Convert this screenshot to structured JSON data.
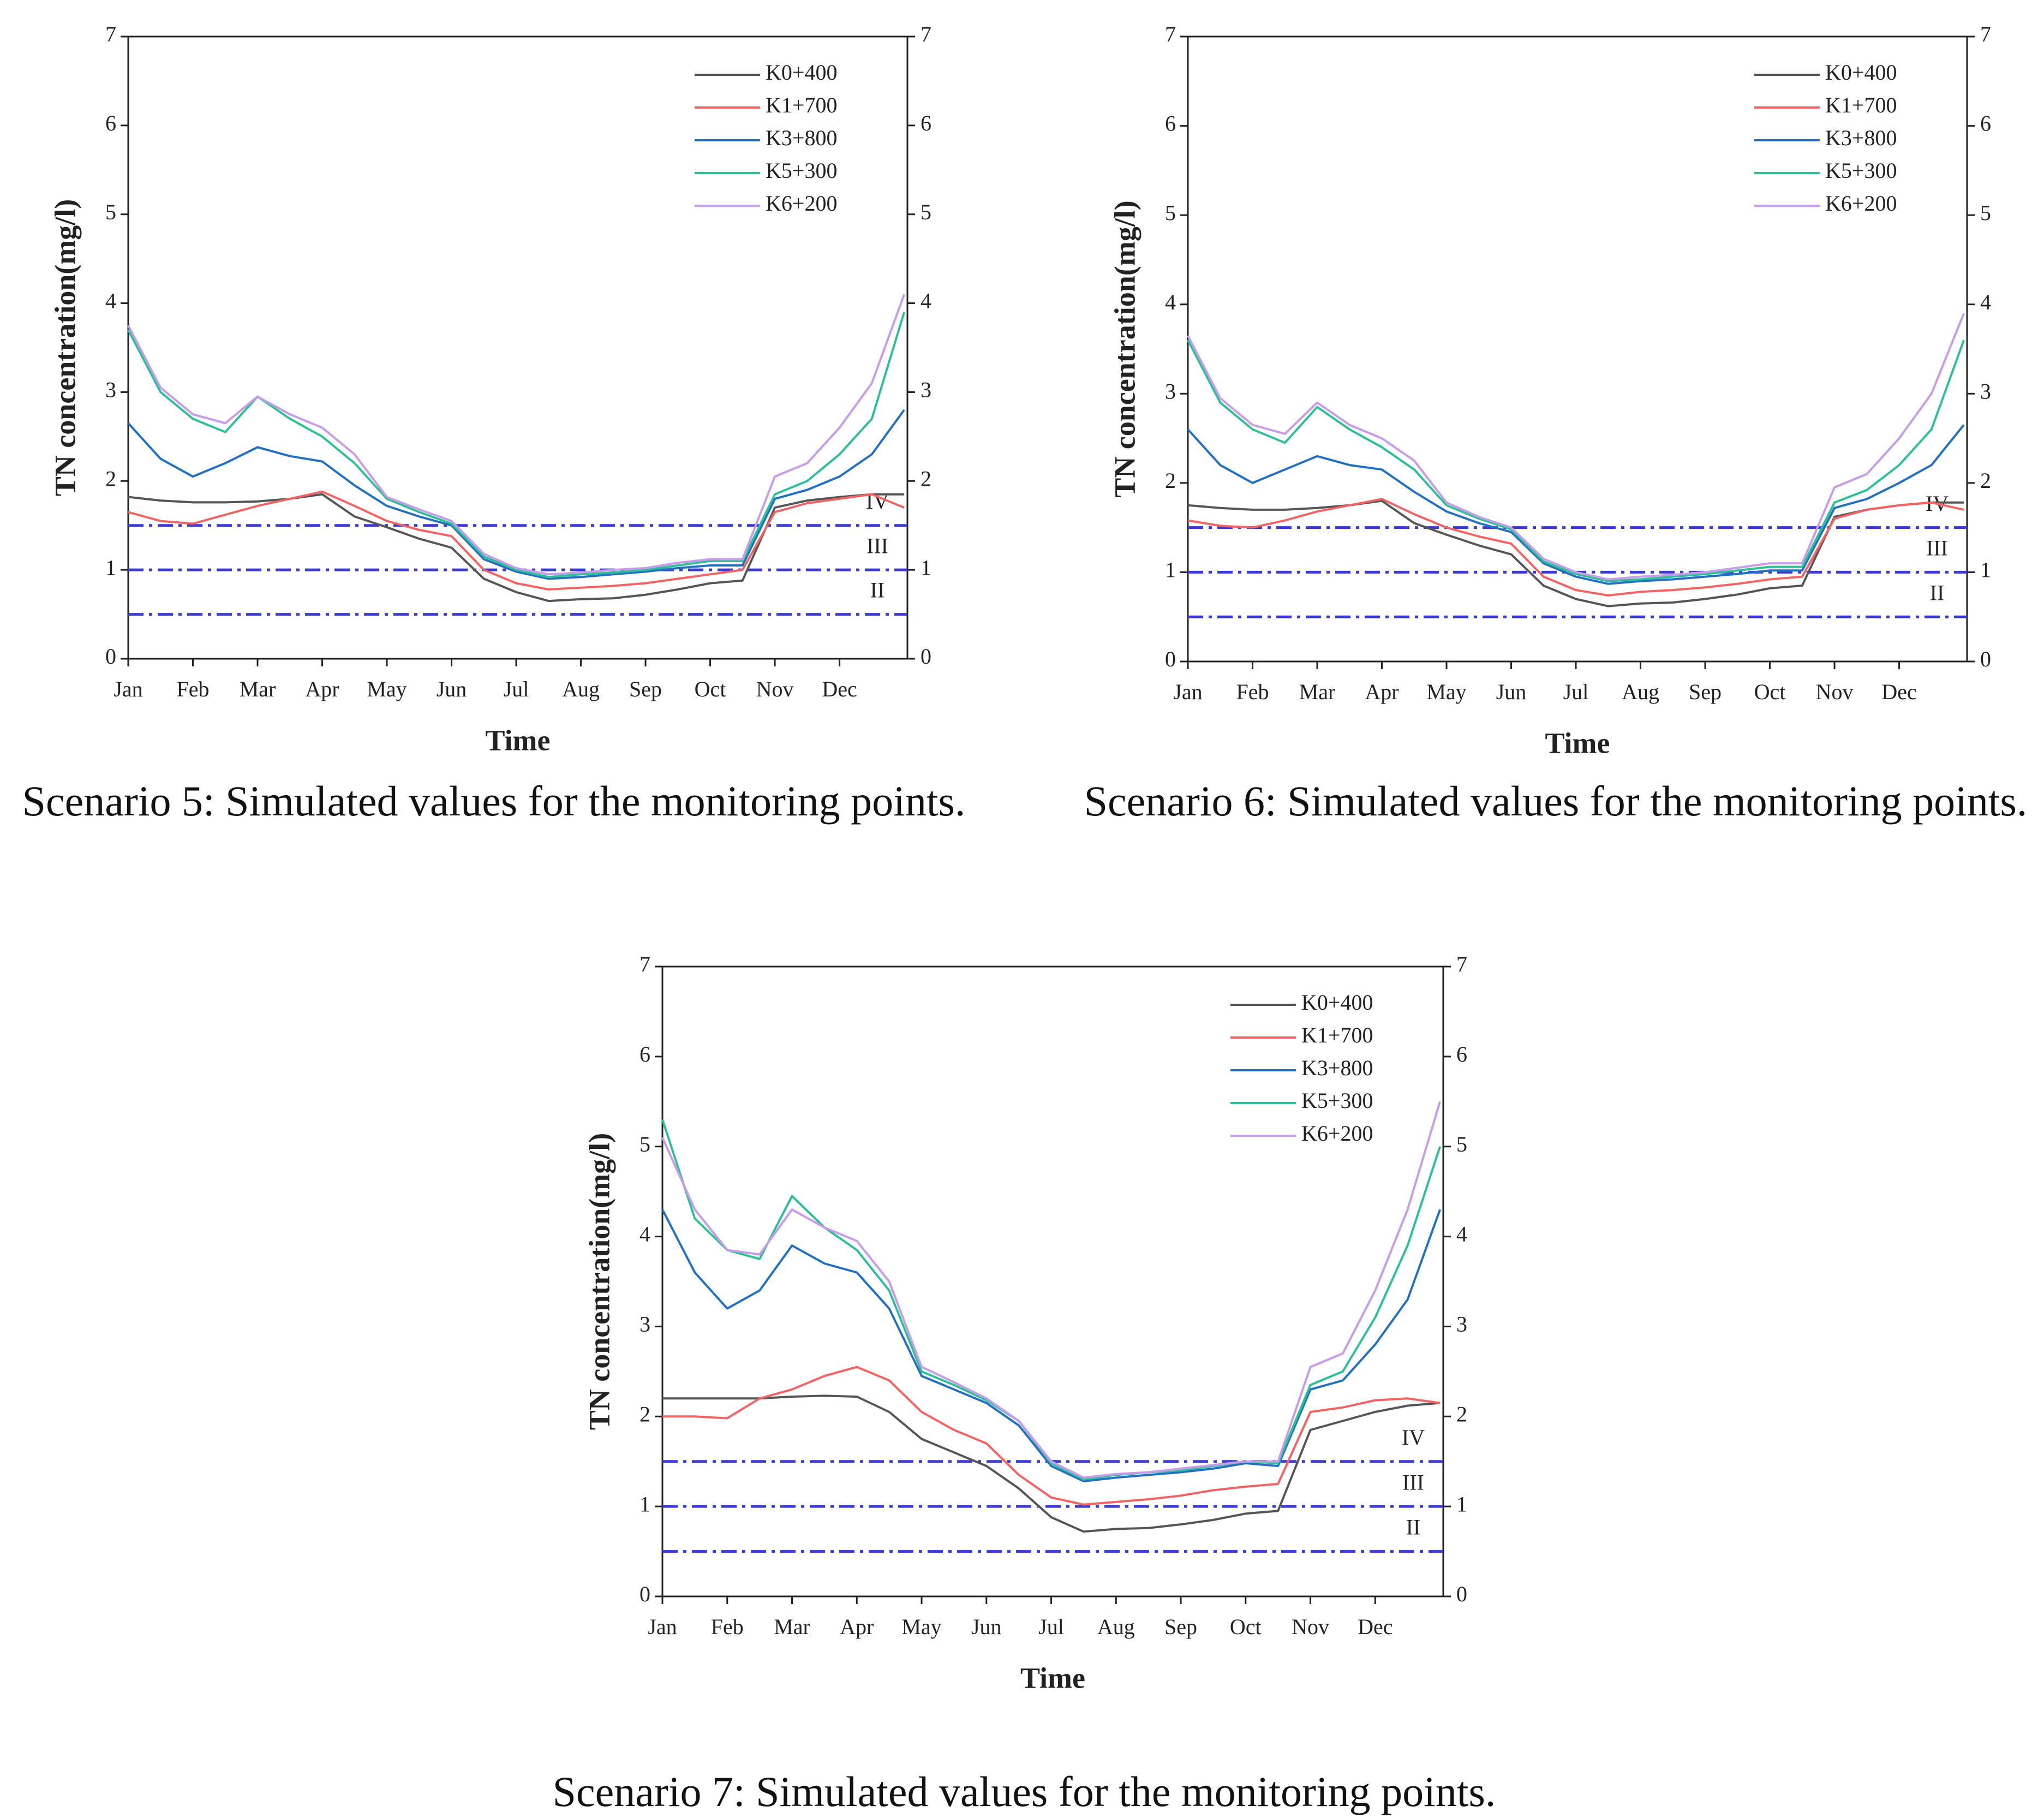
{
  "chart_data": [
    {
      "type": "line",
      "caption": "Scenario 5: Simulated values for the monitoring points.",
      "xlabel": "Time",
      "ylabel": "TN concentration(mg/l)",
      "legend": "upper right",
      "categories": [
        "Jan",
        null,
        "Feb",
        null,
        "Mar",
        null,
        "Apr",
        null,
        "May",
        null,
        "Jun",
        null,
        "Jul",
        null,
        "Aug",
        null,
        "Sep",
        null,
        "Oct",
        null,
        "Nov",
        null,
        "Dec",
        null,
        null
      ],
      "ylim": [
        0,
        7
      ],
      "yticks": [
        0,
        1,
        2,
        3,
        4,
        5,
        6,
        7
      ],
      "y2lim": [
        0,
        7
      ],
      "y2ticks": [
        0,
        1,
        2,
        3,
        4,
        5,
        6,
        7
      ],
      "reference_lines": [
        {
          "value": 1.5,
          "label": "IV",
          "color": "#3a3ad6"
        },
        {
          "value": 1,
          "label": "III",
          "color": "#3a3ad6"
        },
        {
          "value": 0.5,
          "label": "II",
          "color": "#3a3ad6"
        }
      ],
      "series": [
        {
          "name": "K0+400",
          "color": "#555555",
          "values": [
            1.82,
            1.78,
            1.76,
            1.76,
            1.77,
            1.8,
            1.85,
            1.6,
            1.48,
            1.35,
            1.25,
            0.9,
            0.75,
            0.65,
            0.67,
            0.68,
            0.72,
            0.78,
            0.85,
            0.88,
            1.7,
            1.78,
            1.82,
            1.85,
            1.85
          ]
        },
        {
          "name": "K1+700",
          "color": "#f26464",
          "values": [
            1.65,
            1.55,
            1.52,
            1.62,
            1.72,
            1.8,
            1.88,
            1.72,
            1.55,
            1.45,
            1.38,
            1.0,
            0.85,
            0.78,
            0.8,
            0.82,
            0.85,
            0.9,
            0.95,
            1.0,
            1.65,
            1.75,
            1.8,
            1.85,
            1.7
          ]
        },
        {
          "name": "K3+800",
          "color": "#2270c2",
          "values": [
            2.65,
            2.25,
            2.05,
            2.2,
            2.38,
            2.28,
            2.22,
            1.95,
            1.72,
            1.6,
            1.5,
            1.12,
            0.98,
            0.9,
            0.92,
            0.95,
            0.98,
            1.02,
            1.05,
            1.05,
            1.8,
            1.9,
            2.05,
            2.3,
            2.8
          ]
        },
        {
          "name": "K5+300",
          "color": "#2ebf98",
          "values": [
            3.7,
            3.0,
            2.7,
            2.55,
            2.95,
            2.7,
            2.5,
            2.2,
            1.8,
            1.65,
            1.52,
            1.15,
            1.0,
            0.92,
            0.95,
            0.97,
            1.0,
            1.05,
            1.1,
            1.1,
            1.85,
            2.0,
            2.3,
            2.7,
            3.9
          ]
        },
        {
          "name": "K6+200",
          "color": "#c79de8",
          "values": [
            3.75,
            3.05,
            2.75,
            2.65,
            2.95,
            2.75,
            2.6,
            2.3,
            1.82,
            1.68,
            1.55,
            1.18,
            1.02,
            0.95,
            0.97,
            1.0,
            1.02,
            1.08,
            1.12,
            1.12,
            2.05,
            2.2,
            2.6,
            3.1,
            4.1
          ]
        }
      ]
    },
    {
      "type": "line",
      "caption": "Scenario 6: Simulated values for the monitoring points.",
      "xlabel": "Time",
      "ylabel": "TN concentration(mg/l)",
      "legend": "upper right",
      "categories": [
        "Jan",
        null,
        "Feb",
        null,
        "Mar",
        null,
        "Apr",
        null,
        "May",
        null,
        "Jun",
        null,
        "Jul",
        null,
        "Aug",
        null,
        "Sep",
        null,
        "Oct",
        null,
        "Nov",
        null,
        "Dec",
        null,
        null
      ],
      "ylim": [
        0,
        7
      ],
      "yticks": [
        0,
        1,
        2,
        3,
        4,
        5,
        6,
        7
      ],
      "y2lim": [
        0,
        7
      ],
      "y2ticks": [
        0,
        1,
        2,
        3,
        4,
        5,
        6,
        7
      ],
      "reference_lines": [
        {
          "value": 1.5,
          "label": "IV",
          "color": "#3a3ad6"
        },
        {
          "value": 1,
          "label": "III",
          "color": "#3a3ad6"
        },
        {
          "value": 0.5,
          "label": "II",
          "color": "#3a3ad6"
        }
      ],
      "series": [
        {
          "name": "K0+400",
          "color": "#555555",
          "values": [
            1.75,
            1.72,
            1.7,
            1.7,
            1.72,
            1.75,
            1.8,
            1.55,
            1.42,
            1.3,
            1.2,
            0.85,
            0.7,
            0.62,
            0.65,
            0.66,
            0.7,
            0.75,
            0.82,
            0.85,
            1.62,
            1.7,
            1.75,
            1.78,
            1.78
          ]
        },
        {
          "name": "K1+700",
          "color": "#f26464",
          "values": [
            1.58,
            1.52,
            1.5,
            1.58,
            1.68,
            1.75,
            1.82,
            1.65,
            1.5,
            1.4,
            1.32,
            0.95,
            0.8,
            0.74,
            0.78,
            0.8,
            0.83,
            0.87,
            0.92,
            0.95,
            1.6,
            1.7,
            1.75,
            1.78,
            1.7
          ]
        },
        {
          "name": "K3+800",
          "color": "#2270c2",
          "values": [
            2.6,
            2.2,
            2.0,
            2.15,
            2.3,
            2.2,
            2.15,
            1.9,
            1.68,
            1.55,
            1.45,
            1.1,
            0.95,
            0.87,
            0.9,
            0.92,
            0.95,
            0.98,
            1.02,
            1.02,
            1.72,
            1.82,
            2.0,
            2.2,
            2.65
          ]
        },
        {
          "name": "K5+300",
          "color": "#2ebf98",
          "values": [
            3.6,
            2.9,
            2.6,
            2.45,
            2.85,
            2.6,
            2.4,
            2.15,
            1.75,
            1.6,
            1.48,
            1.12,
            0.98,
            0.9,
            0.92,
            0.95,
            0.98,
            1.02,
            1.06,
            1.06,
            1.78,
            1.92,
            2.2,
            2.6,
            3.6
          ]
        },
        {
          "name": "K6+200",
          "color": "#c79de8",
          "values": [
            3.65,
            2.95,
            2.65,
            2.55,
            2.9,
            2.65,
            2.5,
            2.25,
            1.78,
            1.62,
            1.5,
            1.15,
            1.0,
            0.92,
            0.95,
            0.97,
            1.0,
            1.05,
            1.1,
            1.1,
            1.95,
            2.1,
            2.5,
            3.0,
            3.9
          ]
        }
      ]
    },
    {
      "type": "line",
      "caption": "Scenario 7: Simulated values for the monitoring points.",
      "xlabel": "Time",
      "ylabel": "TN concentration(mg/l)",
      "legend": "upper right",
      "categories": [
        "Jan",
        null,
        "Feb",
        null,
        "Mar",
        null,
        "Apr",
        null,
        "May",
        null,
        "Jun",
        null,
        "Jul",
        null,
        "Aug",
        null,
        "Sep",
        null,
        "Oct",
        null,
        "Nov",
        null,
        "Dec",
        null,
        null
      ],
      "ylim": [
        0,
        7
      ],
      "yticks": [
        0,
        1,
        2,
        3,
        4,
        5,
        6,
        7
      ],
      "y2lim": [
        0,
        7
      ],
      "y2ticks": [
        0,
        1,
        2,
        3,
        4,
        5,
        6,
        7
      ],
      "reference_lines": [
        {
          "value": 1.5,
          "label": "IV",
          "color": "#3a3ad6"
        },
        {
          "value": 1,
          "label": "III",
          "color": "#3a3ad6"
        },
        {
          "value": 0.5,
          "label": "II",
          "color": "#3a3ad6"
        }
      ],
      "series": [
        {
          "name": "K0+400",
          "color": "#555555",
          "values": [
            2.2,
            2.2,
            2.2,
            2.2,
            2.22,
            2.23,
            2.22,
            2.05,
            1.75,
            1.6,
            1.45,
            1.2,
            0.88,
            0.72,
            0.75,
            0.76,
            0.8,
            0.85,
            0.92,
            0.95,
            1.85,
            1.95,
            2.05,
            2.12,
            2.15
          ]
        },
        {
          "name": "K1+700",
          "color": "#f26464",
          "values": [
            2.0,
            2.0,
            1.98,
            2.2,
            2.3,
            2.45,
            2.55,
            2.4,
            2.05,
            1.85,
            1.7,
            1.35,
            1.1,
            1.02,
            1.05,
            1.08,
            1.12,
            1.18,
            1.22,
            1.25,
            2.05,
            2.1,
            2.18,
            2.2,
            2.15
          ]
        },
        {
          "name": "K3+800",
          "color": "#2270c2",
          "values": [
            4.3,
            3.6,
            3.2,
            3.4,
            3.9,
            3.7,
            3.6,
            3.2,
            2.45,
            2.3,
            2.15,
            1.9,
            1.45,
            1.28,
            1.32,
            1.35,
            1.38,
            1.42,
            1.48,
            1.45,
            2.3,
            2.4,
            2.8,
            3.3,
            4.3
          ]
        },
        {
          "name": "K5+300",
          "color": "#2ebf98",
          "values": [
            5.3,
            4.2,
            3.85,
            3.75,
            4.45,
            4.1,
            3.85,
            3.4,
            2.5,
            2.35,
            2.18,
            1.95,
            1.48,
            1.3,
            1.35,
            1.38,
            1.4,
            1.45,
            1.5,
            1.48,
            2.35,
            2.5,
            3.1,
            3.9,
            5.0
          ]
        },
        {
          "name": "K6+200",
          "color": "#c79de8",
          "values": [
            5.1,
            4.3,
            3.85,
            3.8,
            4.3,
            4.1,
            3.95,
            3.5,
            2.55,
            2.38,
            2.2,
            1.95,
            1.5,
            1.32,
            1.36,
            1.38,
            1.42,
            1.46,
            1.5,
            1.5,
            2.55,
            2.7,
            3.4,
            4.3,
            5.5
          ]
        }
      ]
    }
  ]
}
